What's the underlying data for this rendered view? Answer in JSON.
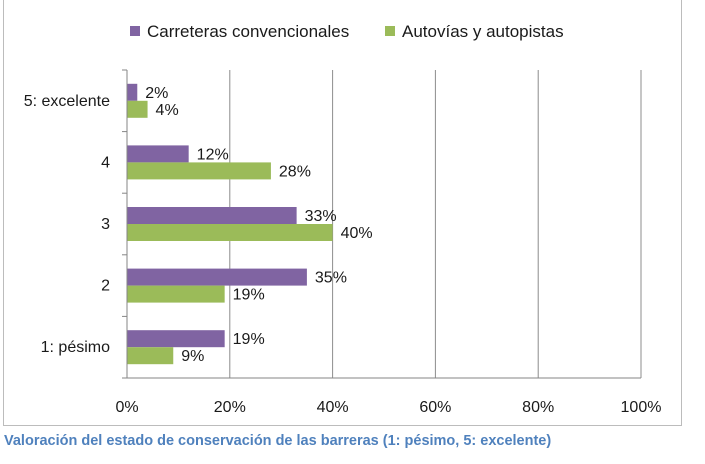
{
  "chart_data": {
    "type": "bar",
    "orientation": "horizontal",
    "categories": [
      "5: excelente",
      "4",
      "3",
      "2",
      "1: pésimo"
    ],
    "series": [
      {
        "name": "Carreteras convencionales",
        "color": "#8064a2",
        "values": [
          2,
          12,
          33,
          35,
          19
        ]
      },
      {
        "name": "Autovías y autopistas",
        "color": "#9bbb59",
        "values": [
          4,
          28,
          40,
          19,
          9
        ]
      }
    ],
    "xlim": [
      0,
      100
    ],
    "xticks": [
      0,
      20,
      40,
      60,
      80,
      100
    ],
    "value_suffix": "%",
    "grid": true,
    "legend_position": "top"
  },
  "caption": "Valoración del estado de conservación de las barreras (1: pésimo, 5: excelente)"
}
